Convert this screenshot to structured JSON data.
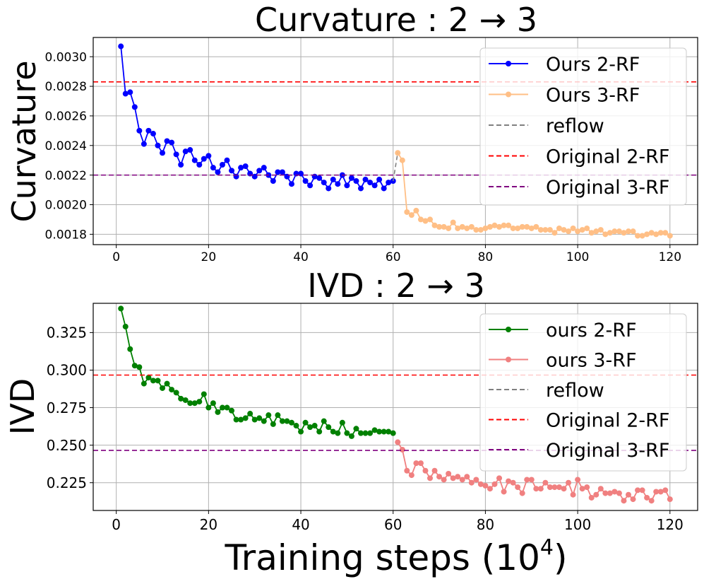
{
  "figure": {
    "xlabel": "Training steps (10",
    "xlabel_exp": "4",
    "xlabel_close": ")"
  },
  "chart_data": [
    {
      "type": "line",
      "title": "Curvature : 2 → 3",
      "xlabel": "",
      "ylabel": "Curvature",
      "xlim": [
        -5,
        126
      ],
      "ylim": [
        0.00173,
        0.00313
      ],
      "xticks": [
        0,
        20,
        40,
        60,
        80,
        100,
        120
      ],
      "yticks": [
        0.0018,
        0.002,
        0.0022,
        0.0024,
        0.0026,
        0.0028,
        0.003
      ],
      "ytick_labels": [
        "0.0018",
        "0.0020",
        "0.0022",
        "0.0024",
        "0.0026",
        "0.0028",
        "0.0030"
      ],
      "grid": true,
      "legend_position": "top-right",
      "series": [
        {
          "name": "Ours 2-RF",
          "color": "#0000ff",
          "style": "solid-marker",
          "x": [
            1,
            2,
            3,
            4,
            5,
            6,
            7,
            8,
            9,
            10,
            11,
            12,
            13,
            14,
            15,
            16,
            17,
            18,
            19,
            20,
            21,
            22,
            23,
            24,
            25,
            26,
            27,
            28,
            29,
            30,
            31,
            32,
            33,
            34,
            35,
            36,
            37,
            38,
            39,
            40,
            41,
            42,
            43,
            44,
            45,
            46,
            47,
            48,
            49,
            50,
            51,
            52,
            53,
            54,
            55,
            56,
            57,
            58,
            59,
            60
          ],
          "y": [
            0.00307,
            0.00275,
            0.00276,
            0.00266,
            0.0025,
            0.00241,
            0.0025,
            0.00248,
            0.0024,
            0.00235,
            0.00243,
            0.00242,
            0.00234,
            0.00227,
            0.00236,
            0.00237,
            0.0023,
            0.00227,
            0.00231,
            0.00233,
            0.00225,
            0.00222,
            0.00227,
            0.0023,
            0.00223,
            0.00219,
            0.00225,
            0.00226,
            0.00221,
            0.00219,
            0.00223,
            0.00225,
            0.0022,
            0.00216,
            0.00222,
            0.00222,
            0.00219,
            0.00214,
            0.00221,
            0.00221,
            0.00216,
            0.00213,
            0.00219,
            0.00218,
            0.00215,
            0.00211,
            0.00217,
            0.00214,
            0.0022,
            0.00213,
            0.00218,
            0.00216,
            0.00211,
            0.00217,
            0.00215,
            0.00213,
            0.00217,
            0.00211,
            0.00215,
            0.00216
          ]
        },
        {
          "name": "Ours 3-RF",
          "color": "#ffbf86",
          "style": "solid-marker",
          "x": [
            61,
            62,
            63,
            64,
            65,
            66,
            67,
            68,
            69,
            70,
            71,
            72,
            73,
            74,
            75,
            76,
            77,
            78,
            79,
            80,
            81,
            82,
            83,
            84,
            85,
            86,
            87,
            88,
            89,
            90,
            91,
            92,
            93,
            94,
            95,
            96,
            97,
            98,
            99,
            100,
            101,
            102,
            103,
            104,
            105,
            106,
            107,
            108,
            109,
            110,
            111,
            112,
            113,
            114,
            115,
            116,
            117,
            118,
            119,
            120
          ],
          "y": [
            0.00235,
            0.0023,
            0.00195,
            0.00193,
            0.00196,
            0.0019,
            0.00189,
            0.0019,
            0.00186,
            0.00185,
            0.00185,
            0.00184,
            0.00188,
            0.00184,
            0.00185,
            0.00184,
            0.00185,
            0.00183,
            0.00183,
            0.00184,
            0.00185,
            0.00186,
            0.00185,
            0.00186,
            0.00186,
            0.00184,
            0.00184,
            0.00185,
            0.00185,
            0.00184,
            0.00185,
            0.00183,
            0.00183,
            0.00183,
            0.00181,
            0.00184,
            0.00183,
            0.00182,
            0.00184,
            0.00182,
            0.00183,
            0.00184,
            0.00181,
            0.00182,
            0.00183,
            0.0018,
            0.00181,
            0.00182,
            0.00182,
            0.00181,
            0.00182,
            0.00182,
            0.00179,
            0.00179,
            0.0018,
            0.00181,
            0.0018,
            0.00181,
            0.00181,
            0.00179
          ]
        },
        {
          "name": "reflow",
          "color": "#808080",
          "style": "dashed",
          "x": [
            60,
            61
          ],
          "y": [
            0.00216,
            0.00235
          ]
        },
        {
          "name": "Original 2-RF",
          "color": "#ff0000",
          "style": "dashed-hline",
          "y": 0.00283
        },
        {
          "name": "Original 3-RF",
          "color": "#800080",
          "style": "dashed-hline",
          "y": 0.0022
        }
      ]
    },
    {
      "type": "line",
      "title": "IVD : 2 → 3",
      "xlabel": "Training steps (10^4)",
      "ylabel": "IVD",
      "xlim": [
        -5,
        126
      ],
      "ylim": [
        0.2065,
        0.3445
      ],
      "xticks": [
        0,
        20,
        40,
        60,
        80,
        100,
        120
      ],
      "yticks": [
        0.225,
        0.25,
        0.275,
        0.3,
        0.325
      ],
      "ytick_labels": [
        "0.225",
        "0.250",
        "0.275",
        "0.300",
        "0.325"
      ],
      "grid": true,
      "legend_position": "top-right",
      "series": [
        {
          "name": "ours 2-RF",
          "color": "#008000",
          "style": "solid-marker",
          "x": [
            1,
            2,
            3,
            4,
            5,
            6,
            7,
            8,
            9,
            10,
            11,
            12,
            13,
            14,
            15,
            16,
            17,
            18,
            19,
            20,
            21,
            22,
            23,
            24,
            25,
            26,
            27,
            28,
            29,
            30,
            31,
            32,
            33,
            34,
            35,
            36,
            37,
            38,
            39,
            40,
            41,
            42,
            43,
            44,
            45,
            46,
            47,
            48,
            49,
            50,
            51,
            52,
            53,
            54,
            55,
            56,
            57,
            58,
            59,
            60
          ],
          "y": [
            0.341,
            0.329,
            0.314,
            0.303,
            0.302,
            0.291,
            0.295,
            0.293,
            0.293,
            0.288,
            0.291,
            0.287,
            0.285,
            0.281,
            0.28,
            0.278,
            0.278,
            0.279,
            0.284,
            0.275,
            0.278,
            0.272,
            0.275,
            0.275,
            0.273,
            0.267,
            0.267,
            0.268,
            0.271,
            0.267,
            0.268,
            0.266,
            0.27,
            0.264,
            0.27,
            0.266,
            0.266,
            0.265,
            0.263,
            0.259,
            0.265,
            0.262,
            0.263,
            0.259,
            0.266,
            0.262,
            0.259,
            0.258,
            0.265,
            0.258,
            0.256,
            0.261,
            0.258,
            0.258,
            0.258,
            0.26,
            0.259,
            0.259,
            0.259,
            0.258
          ]
        },
        {
          "name": "ours 3-RF",
          "color": "#f08080",
          "style": "solid-marker",
          "x": [
            61,
            62,
            63,
            64,
            65,
            66,
            67,
            68,
            69,
            70,
            71,
            72,
            73,
            74,
            75,
            76,
            77,
            78,
            79,
            80,
            81,
            82,
            83,
            84,
            85,
            86,
            87,
            88,
            89,
            90,
            91,
            92,
            93,
            94,
            95,
            96,
            97,
            98,
            99,
            100,
            101,
            102,
            103,
            104,
            105,
            106,
            107,
            108,
            109,
            110,
            111,
            112,
            113,
            114,
            115,
            116,
            117,
            118,
            119,
            120
          ],
          "y": [
            0.252,
            0.247,
            0.233,
            0.23,
            0.238,
            0.238,
            0.233,
            0.228,
            0.233,
            0.229,
            0.227,
            0.231,
            0.228,
            0.229,
            0.227,
            0.229,
            0.225,
            0.227,
            0.224,
            0.223,
            0.221,
            0.224,
            0.228,
            0.219,
            0.226,
            0.225,
            0.222,
            0.218,
            0.227,
            0.227,
            0.221,
            0.221,
            0.225,
            0.222,
            0.222,
            0.222,
            0.221,
            0.225,
            0.217,
            0.227,
            0.221,
            0.222,
            0.215,
            0.217,
            0.221,
            0.218,
            0.218,
            0.219,
            0.218,
            0.213,
            0.217,
            0.214,
            0.22,
            0.22,
            0.215,
            0.213,
            0.219,
            0.219,
            0.22,
            0.214
          ]
        },
        {
          "name": "reflow",
          "color": "#808080",
          "style": "dashed",
          "x": [],
          "y": []
        },
        {
          "name": "Original 2-RF",
          "color": "#ff0000",
          "style": "dashed-hline",
          "y": 0.2967
        },
        {
          "name": "Original 3-RF",
          "color": "#800080",
          "style": "dashed-hline",
          "y": 0.2465
        }
      ]
    }
  ]
}
